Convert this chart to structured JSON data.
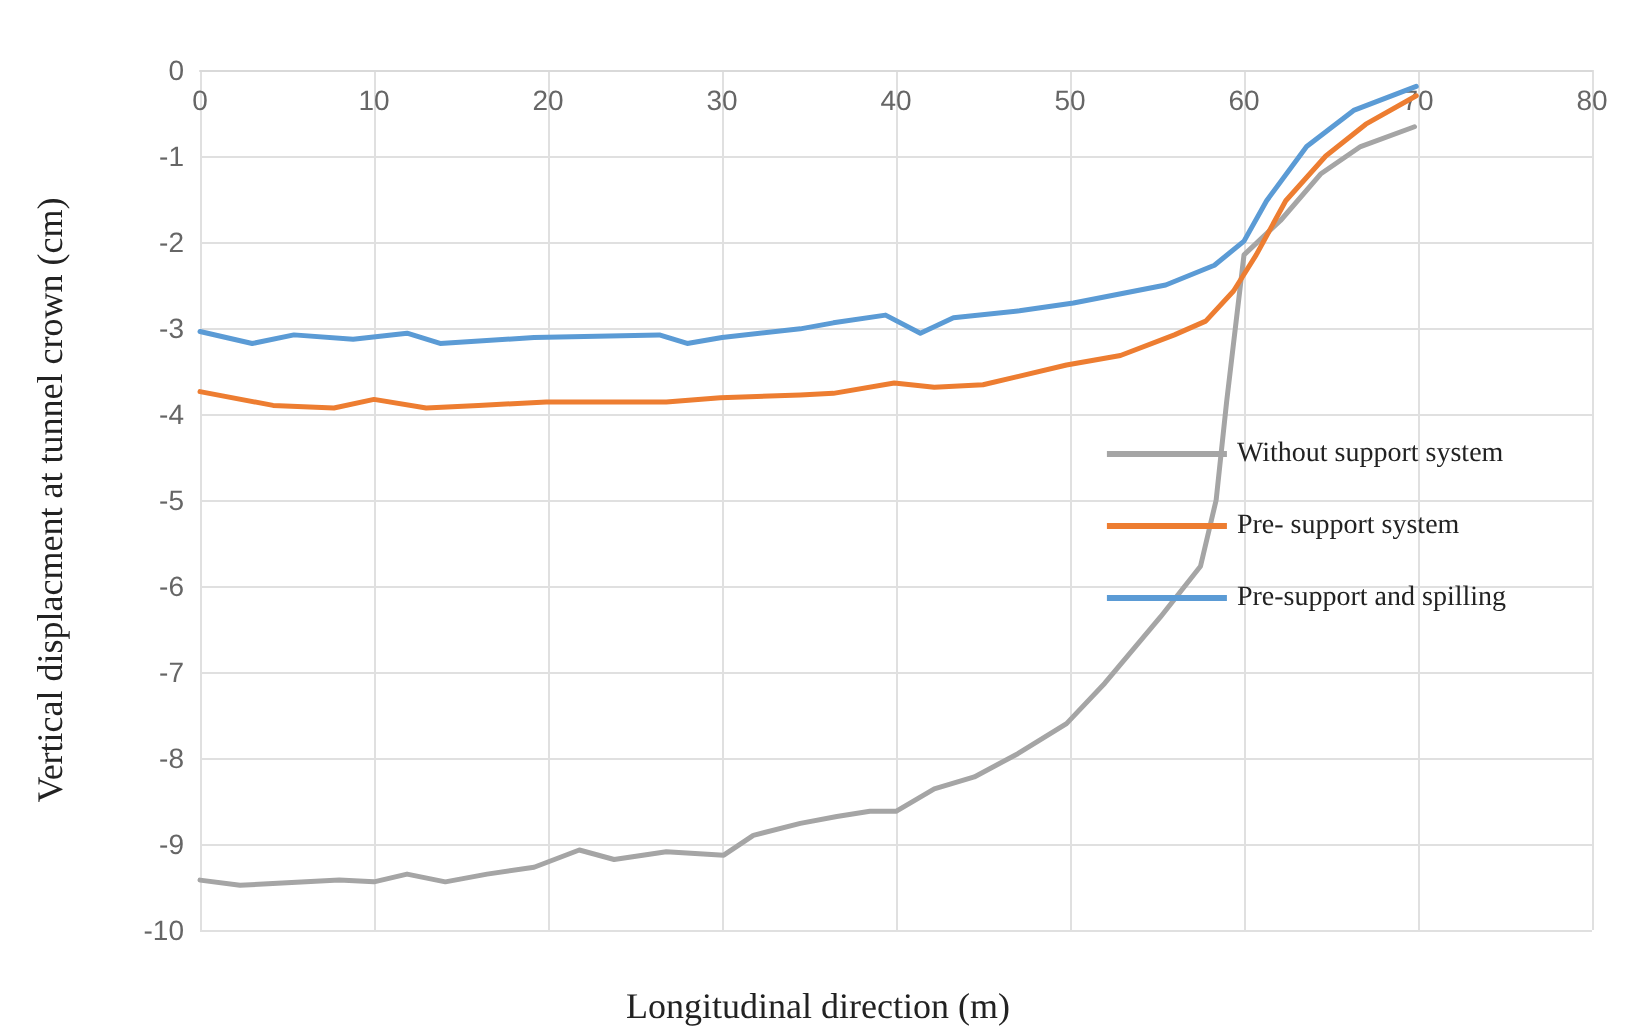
{
  "chart_data": {
    "type": "line",
    "xlabel": "Longitudinal direction (m)",
    "ylabel": "Vertical displacment at tunnel crown (cm)",
    "xlim": [
      0,
      80
    ],
    "xticks": [
      0,
      10,
      20,
      30,
      40,
      50,
      60,
      70,
      80
    ],
    "ylim": [
      -10,
      0
    ],
    "yticks": [
      -10,
      -9,
      -8,
      -7,
      -6,
      -5,
      -4,
      -3,
      -2,
      -1,
      0
    ],
    "grid": true,
    "legend": "right",
    "marker": "none",
    "line_style": "solid",
    "series": [
      {
        "name": "Without support system",
        "color": "#a5a5a5",
        "x": [
          0,
          2.3,
          5,
          8,
          10,
          11.9,
          14.1,
          16.5,
          19.2,
          21.8,
          23.8,
          26.8,
          30.1,
          31.8,
          34.5,
          36.6,
          38.5,
          40,
          42.2,
          44.5,
          47,
          49.8,
          52,
          55.2,
          57.5,
          58.4,
          59,
          60,
          62.1,
          64.4,
          66.7,
          69.8
        ],
        "values": [
          -9.42,
          -9.48,
          -9.45,
          -9.42,
          -9.44,
          -9.35,
          -9.44,
          -9.35,
          -9.27,
          -9.07,
          -9.18,
          -9.09,
          -9.13,
          -8.9,
          -8.76,
          -8.68,
          -8.62,
          -8.62,
          -8.36,
          -8.22,
          -7.95,
          -7.6,
          -7.13,
          -6.36,
          -5.77,
          -5,
          -3.86,
          -2.15,
          -1.75,
          -1.21,
          -0.89,
          -0.66
        ]
      },
      {
        "name": "Pre- support system",
        "color": "#ed7d31",
        "x": [
          0,
          4.2,
          7.7,
          10,
          13,
          16,
          19.9,
          26.8,
          29.9,
          34.5,
          36.4,
          39.9,
          42.2,
          45,
          49.8,
          52.9,
          56,
          57.8,
          59.4,
          60.7,
          62.4,
          64.7,
          67,
          69.9
        ],
        "values": [
          -3.74,
          -3.9,
          -3.93,
          -3.83,
          -3.93,
          -3.9,
          -3.86,
          -3.86,
          -3.81,
          -3.78,
          -3.76,
          -3.64,
          -3.69,
          -3.66,
          -3.43,
          -3.32,
          -3.08,
          -2.92,
          -2.57,
          -2.15,
          -1.52,
          -1,
          -0.63,
          -0.3
        ]
      },
      {
        "name": "Pre-support and spilling",
        "color": "#5b9bd5",
        "x": [
          0,
          3,
          5.4,
          8.8,
          11.9,
          13.8,
          19.2,
          26.4,
          28,
          30,
          34.5,
          36.4,
          39.4,
          41.4,
          43.3,
          47.1,
          50.2,
          55.5,
          58.3,
          60,
          61.3,
          63.6,
          66.3,
          69.9
        ],
        "values": [
          -3.04,
          -3.18,
          -3.08,
          -3.13,
          -3.06,
          -3.18,
          -3.11,
          -3.08,
          -3.18,
          -3.11,
          -3.01,
          -2.94,
          -2.85,
          -3.06,
          -2.88,
          -2.8,
          -2.71,
          -2.5,
          -2.27,
          -1.99,
          -1.52,
          -0.89,
          -0.47,
          -0.19
        ]
      }
    ]
  }
}
